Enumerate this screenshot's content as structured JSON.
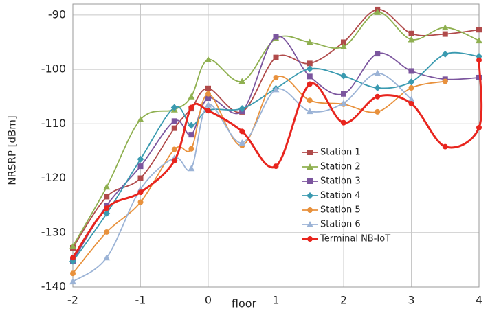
{
  "chart_data": {
    "type": "line",
    "x_label": "floor",
    "y_label": "NRSRP [dBm]",
    "x": [
      -2,
      -1.5,
      -1,
      -0.5,
      -0.25,
      0,
      0.5,
      1,
      1.5,
      2,
      2.5,
      3,
      3.5,
      4
    ],
    "series": [
      {
        "name": "Station 1",
        "color": "#b04a4a",
        "marker": "square",
        "values": [
          -132.8,
          -123.4,
          -120,
          -110.8,
          -107.2,
          -103.5,
          -107.8,
          -97.8,
          -98.9,
          -95,
          -89,
          -93.4,
          -93.5,
          -92.7
        ]
      },
      {
        "name": "Station 2",
        "color": "#8fb050",
        "marker": "triangle",
        "values": [
          -132.5,
          -121.6,
          -109.2,
          -107.4,
          -105,
          -98.2,
          -102.2,
          -94.3,
          -95,
          -95.8,
          -89.5,
          -94.5,
          -92.3,
          -94.7
        ]
      },
      {
        "name": "Station 3",
        "color": "#7b559e",
        "marker": "square",
        "values": [
          -135.2,
          -125,
          -117.8,
          -109.5,
          -112,
          -105.3,
          -107.7,
          -94,
          -101.3,
          -104.5,
          -97.1,
          -100.3,
          -101.8,
          -101.5
        ]
      },
      {
        "name": "Station 4",
        "color": "#3a9ab0",
        "marker": "diamond",
        "values": [
          -135.3,
          -126.5,
          -116.5,
          -107,
          -110.3,
          -107.5,
          -107.2,
          -103.5,
          -99.9,
          -101.2,
          -103.4,
          -102.3,
          -97.2,
          -97.6
        ]
      },
      {
        "name": "Station 5",
        "color": "#e8913c",
        "marker": "circle",
        "values": [
          -137.5,
          -129.9,
          -124.4,
          -114.7,
          -114.6,
          -104.5,
          -114,
          -101.5,
          -105.7,
          -106.4,
          -107.8,
          -103.4,
          -102.2,
          null
        ]
      },
      {
        "name": "Station 6",
        "color": "#9bb3d6",
        "marker": "triangle",
        "values": [
          -139,
          -134.6,
          -122,
          -116.3,
          -118.2,
          -106.5,
          -113.5,
          -103.7,
          -107.7,
          -106.2,
          -100.7,
          -105.5,
          null,
          null
        ]
      },
      {
        "name": "Terminal NB-IoT",
        "color": "#e8251e",
        "marker": "circle",
        "width": 3,
        "x": [
          -2,
          -1.5,
          -1,
          -0.5,
          -0.25,
          0,
          0.5,
          1,
          1.5,
          2,
          2.5,
          3,
          3.5,
          4,
          4
        ],
        "values": [
          -134.6,
          -125.5,
          -122.6,
          -116.8,
          -107,
          -107.6,
          -111.4,
          -117.8,
          -102.7,
          -109.8,
          -105,
          -106.3,
          -114.2,
          -110.7,
          -98.3
        ]
      }
    ],
    "xlim": [
      -2,
      4
    ],
    "xticks": [
      -2,
      -1,
      0,
      1,
      2,
      3,
      4
    ],
    "ylim": [
      -140,
      -88
    ],
    "yticks": [
      -140,
      -130,
      -120,
      -110,
      -100,
      -90
    ],
    "grid": true,
    "legend": "right"
  }
}
